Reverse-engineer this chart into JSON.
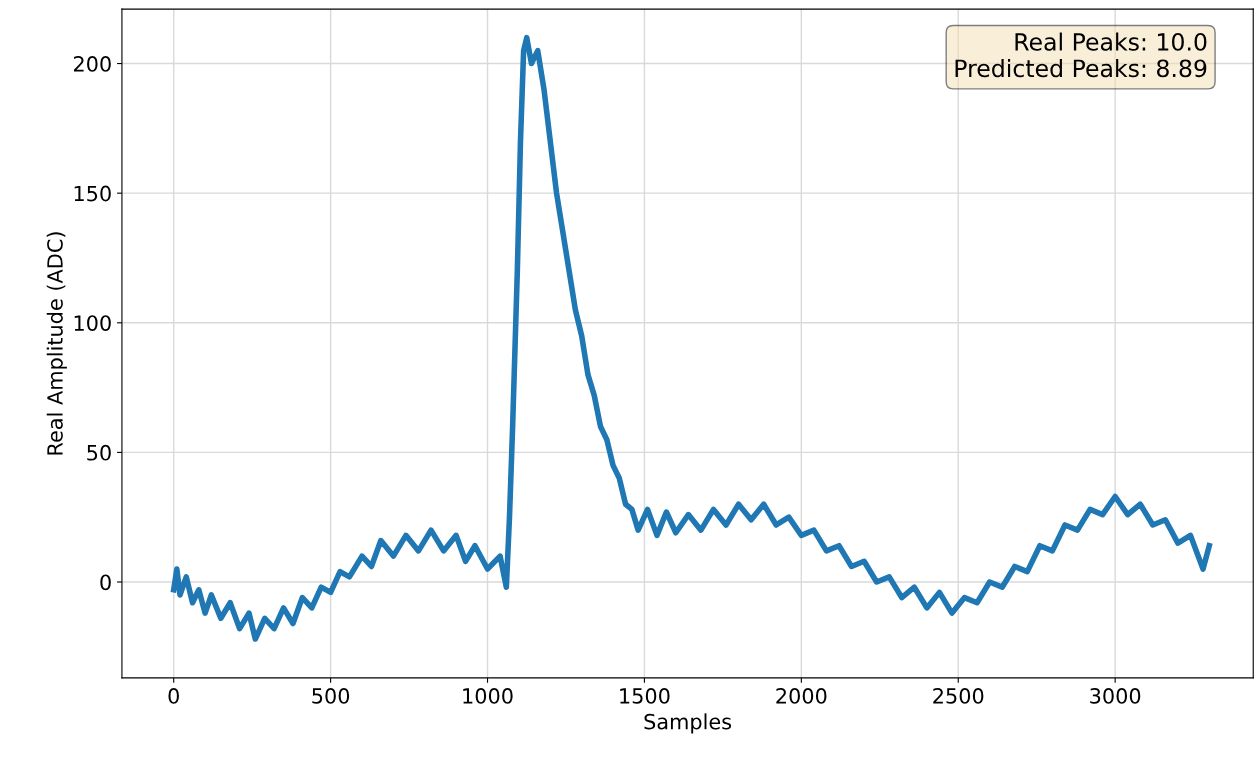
{
  "chart_data": {
    "type": "line",
    "xlabel": "Samples",
    "ylabel": "Real Amplitude (ADC)",
    "x": [
      0,
      10,
      20,
      40,
      60,
      80,
      100,
      120,
      150,
      180,
      210,
      240,
      260,
      290,
      320,
      350,
      380,
      410,
      440,
      470,
      500,
      530,
      560,
      600,
      630,
      660,
      700,
      740,
      780,
      820,
      860,
      900,
      930,
      960,
      1000,
      1040,
      1060,
      1070,
      1080,
      1095,
      1105,
      1115,
      1125,
      1140,
      1160,
      1180,
      1200,
      1220,
      1240,
      1260,
      1280,
      1300,
      1320,
      1340,
      1360,
      1380,
      1400,
      1420,
      1440,
      1460,
      1480,
      1510,
      1540,
      1570,
      1600,
      1640,
      1680,
      1720,
      1760,
      1800,
      1840,
      1880,
      1920,
      1960,
      2000,
      2040,
      2080,
      2120,
      2160,
      2200,
      2240,
      2280,
      2320,
      2360,
      2400,
      2440,
      2480,
      2520,
      2560,
      2600,
      2640,
      2680,
      2720,
      2760,
      2800,
      2840,
      2880,
      2920,
      2960,
      3000,
      3040,
      3080,
      3120,
      3160,
      3200,
      3240,
      3280,
      3300
    ],
    "series": [
      {
        "color": "#1f77b4",
        "values": [
          -3,
          5,
          -5,
          2,
          -8,
          -3,
          -12,
          -5,
          -14,
          -8,
          -18,
          -12,
          -22,
          -14,
          -18,
          -10,
          -16,
          -6,
          -10,
          -2,
          -4,
          4,
          2,
          10,
          6,
          16,
          10,
          18,
          12,
          20,
          12,
          18,
          8,
          14,
          5,
          10,
          -2,
          25,
          60,
          120,
          170,
          205,
          210,
          200,
          205,
          190,
          170,
          150,
          135,
          120,
          105,
          95,
          80,
          72,
          60,
          55,
          45,
          40,
          30,
          28,
          20,
          28,
          18,
          27,
          19,
          26,
          20,
          28,
          22,
          30,
          24,
          30,
          22,
          25,
          18,
          20,
          12,
          14,
          6,
          8,
          0,
          2,
          -6,
          -2,
          -10,
          -4,
          -12,
          -6,
          -8,
          0,
          -2,
          6,
          4,
          14,
          12,
          22,
          20,
          28,
          26,
          33,
          26,
          30,
          22,
          24,
          15,
          18,
          5,
          14
        ]
      }
    ],
    "xlim": [
      -165,
      3440
    ],
    "ylim": [
      -37,
      221
    ],
    "xticks": [
      0,
      500,
      1000,
      1500,
      2000,
      2500,
      3000
    ],
    "yticks": [
      0,
      50,
      100,
      150,
      200
    ],
    "grid": true,
    "legend": false,
    "annotations": [
      "Real Peaks: 10.0\nPredicted Peaks: 8.89"
    ]
  }
}
